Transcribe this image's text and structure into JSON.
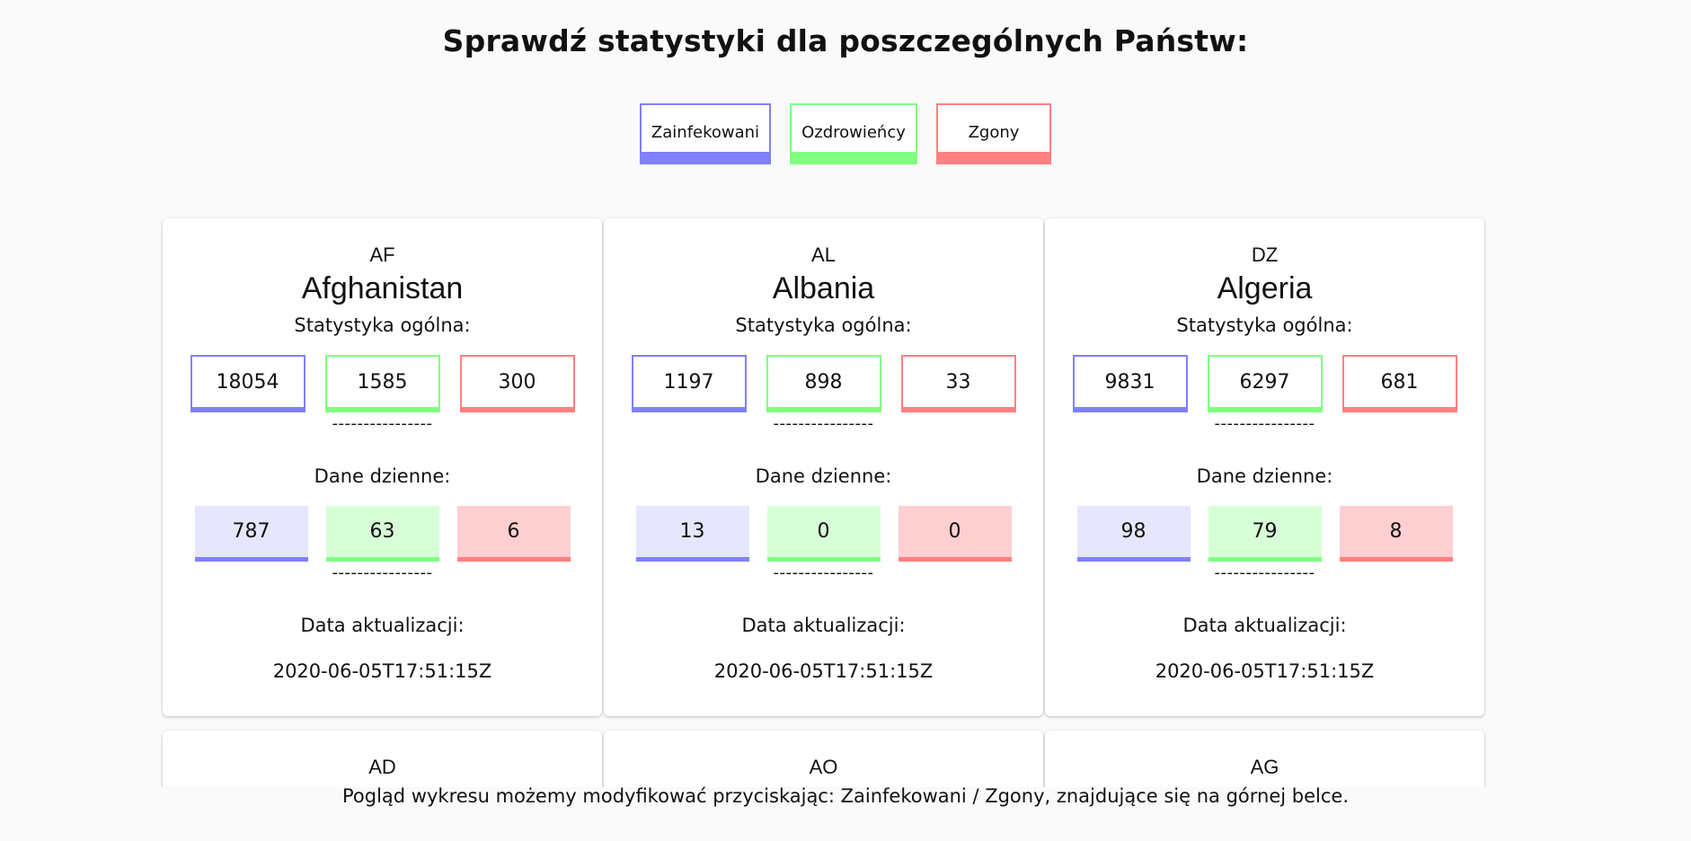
{
  "header": {
    "title": "Sprawdź statystyki dla poszczególnych Państw:"
  },
  "legend": {
    "infected": "Zainfekowani",
    "recovered": "Ozdrowieńcy",
    "deaths": "Zgony"
  },
  "labels": {
    "general": "Statystyka ogólna:",
    "daily": "Dane dzienne:",
    "updated": "Data aktualizacji:",
    "separator": "----------------"
  },
  "countries": [
    {
      "code": "AF",
      "name": "Afghanistan",
      "total": {
        "infected": "18054",
        "recovered": "1585",
        "deaths": "300"
      },
      "daily": {
        "infected": "787",
        "recovered": "63",
        "deaths": "6"
      },
      "updated": "2020-06-05T17:51:15Z"
    },
    {
      "code": "AL",
      "name": "Albania",
      "total": {
        "infected": "1197",
        "recovered": "898",
        "deaths": "33"
      },
      "daily": {
        "infected": "13",
        "recovered": "0",
        "deaths": "0"
      },
      "updated": "2020-06-05T17:51:15Z"
    },
    {
      "code": "DZ",
      "name": "Algeria",
      "total": {
        "infected": "9831",
        "recovered": "6297",
        "deaths": "681"
      },
      "daily": {
        "infected": "98",
        "recovered": "79",
        "deaths": "8"
      },
      "updated": "2020-06-05T17:51:15Z"
    }
  ],
  "partial_countries": [
    {
      "code": "AD"
    },
    {
      "code": "AO"
    },
    {
      "code": "AG"
    }
  ],
  "footer": {
    "note": "Pogląd wykresu możemy modyfikować przyciskając: Zainfekowani / Zgony, znajdujące się na górnej belce."
  },
  "colors": {
    "infected": "#8080ff",
    "recovered": "#80ff80",
    "deaths": "#ff8080"
  }
}
